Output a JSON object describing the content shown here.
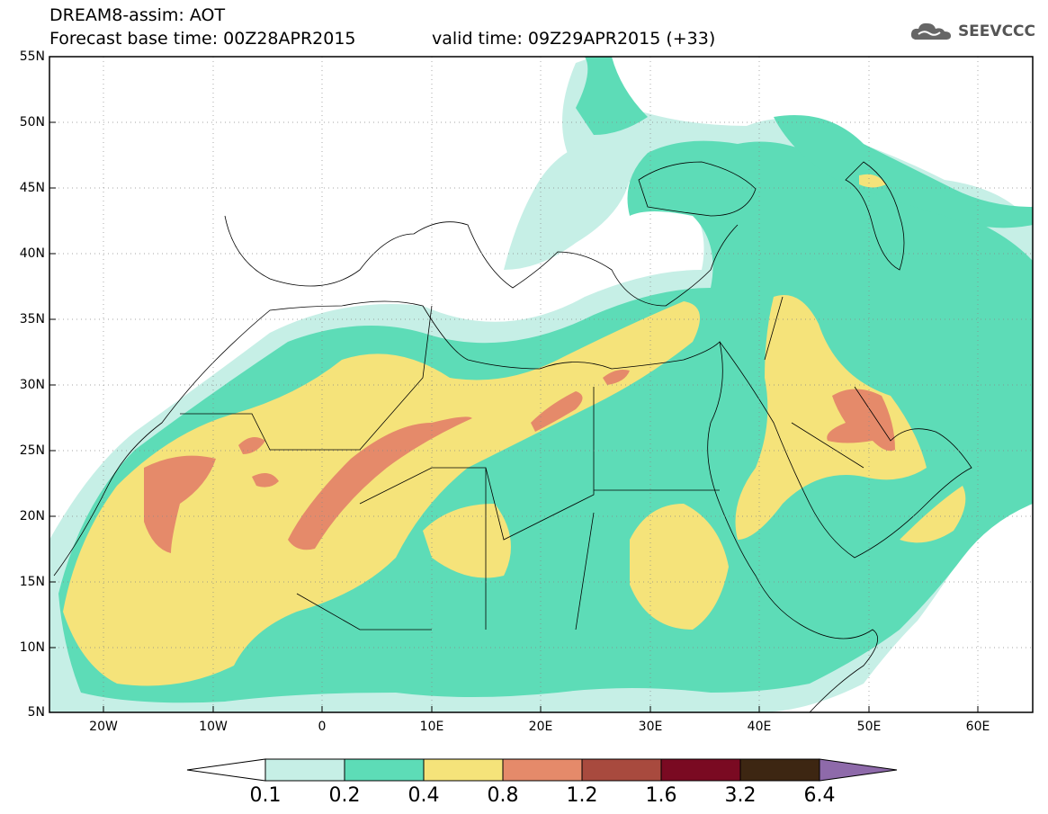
{
  "header": {
    "title_line1": "DREAM8-assim: AOT",
    "title_line2": "Forecast base time: 00Z28APR2015",
    "valid_time": "valid time: 09Z29APR2015 (+33)"
  },
  "logo": {
    "text": "SEEVCCC",
    "icon": "cloud-logo-icon"
  },
  "map": {
    "lat_labels": [
      "55N",
      "50N",
      "45N",
      "40N",
      "35N",
      "30N",
      "25N",
      "20N",
      "15N",
      "10N",
      "5N"
    ],
    "lon_labels": [
      "20W",
      "10W",
      "0",
      "10E",
      "20E",
      "30E",
      "40E",
      "50E",
      "60E"
    ]
  },
  "colorbar": {
    "levels": [
      "0.1",
      "0.2",
      "0.4",
      "0.8",
      "1.2",
      "1.6",
      "3.2",
      "6.4"
    ],
    "colors": [
      "#c6efe6",
      "#5ddcb7",
      "#f5e37a",
      "#e58a6a",
      "#a84a3e",
      "#7a0a22",
      "#3d2612",
      "#8e6aaa"
    ]
  }
}
